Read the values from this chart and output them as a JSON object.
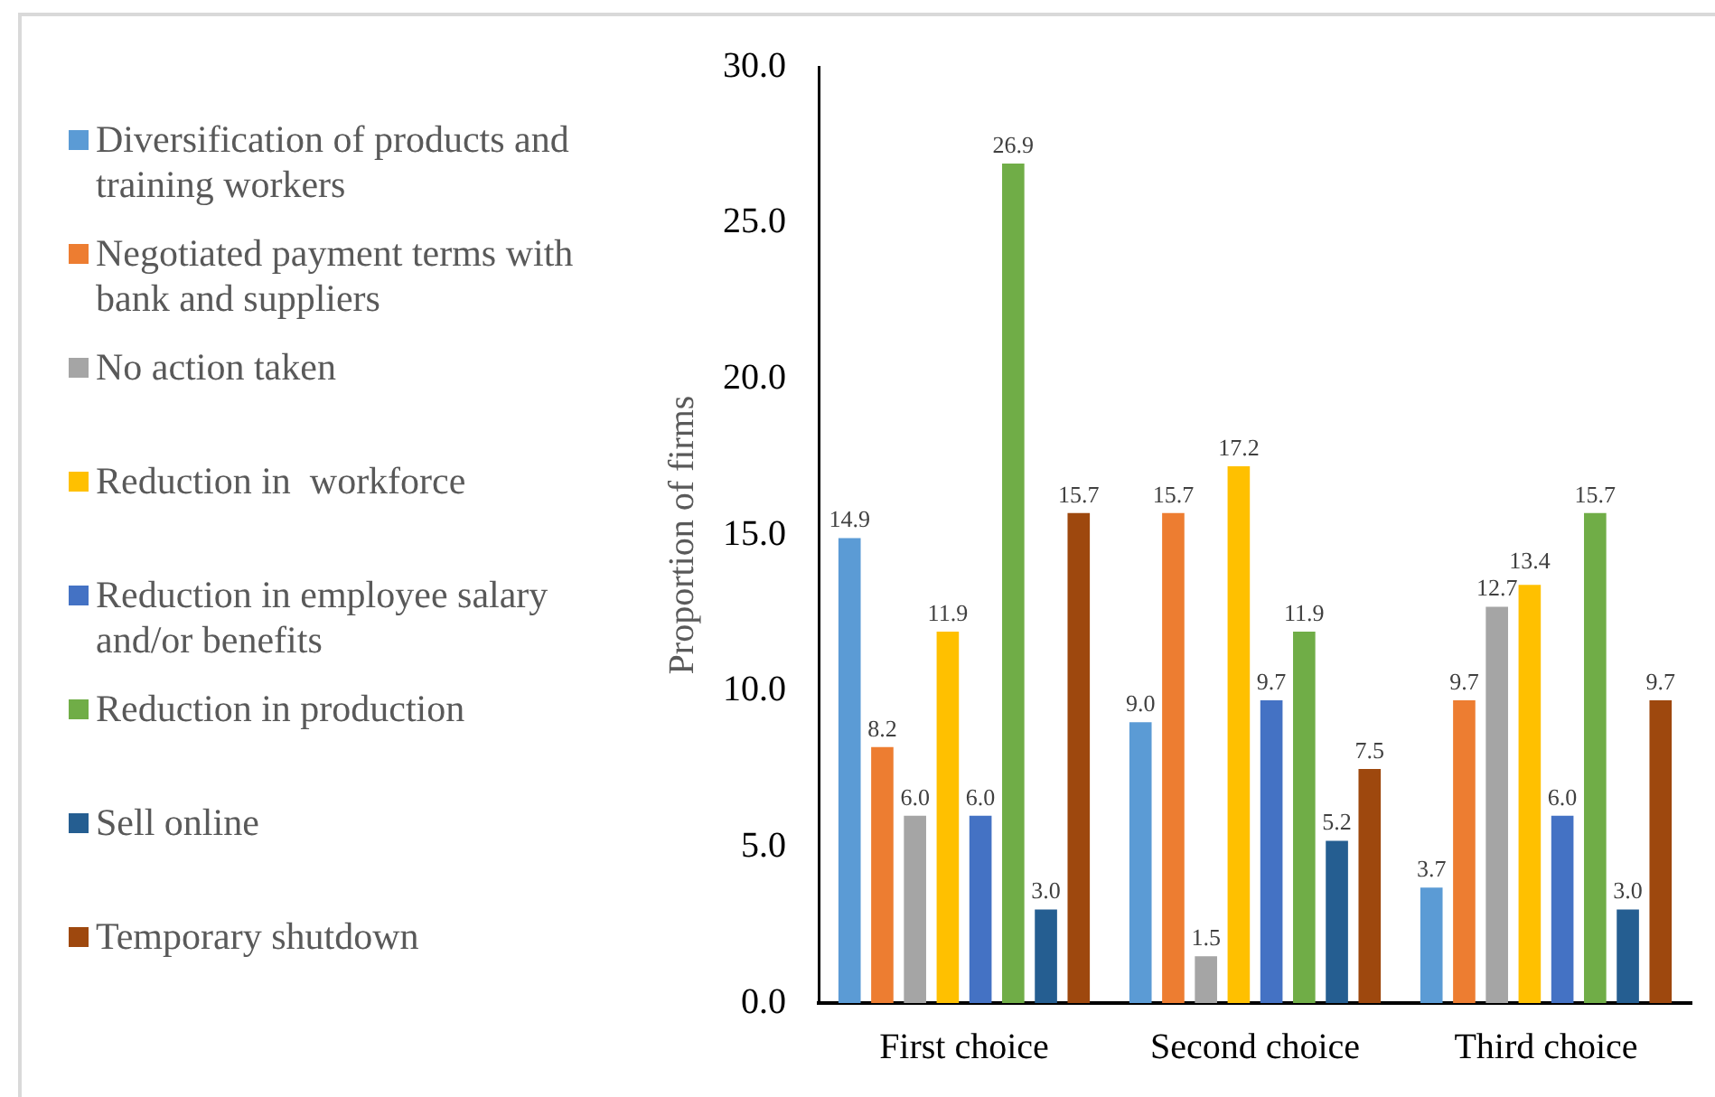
{
  "chart_data": {
    "type": "bar",
    "ylabel": "Proportion of firms",
    "categories": [
      "First choice",
      "Second choice",
      "Third choice"
    ],
    "series": [
      {
        "name": "Diversification of products and training workers",
        "color": "#5b9bd5",
        "values": [
          14.9,
          9.0,
          3.7
        ],
        "value_labels": [
          "14.9",
          "9.0",
          "3.7"
        ]
      },
      {
        "name": "Negotiated payment terms with bank and suppliers",
        "color": "#ed7d31",
        "values": [
          8.2,
          15.7,
          9.7
        ],
        "value_labels": [
          "8.2",
          "15.7",
          "9.7"
        ]
      },
      {
        "name": "No action taken",
        "color": "#a5a5a5",
        "values": [
          6.0,
          1.5,
          12.7
        ],
        "value_labels": [
          "6.0",
          "1.5",
          "12.7"
        ]
      },
      {
        "name": "Reduction in  workforce",
        "color": "#ffc000",
        "values": [
          11.9,
          17.2,
          13.4
        ],
        "value_labels": [
          "11.9",
          "17.2",
          "13.4"
        ]
      },
      {
        "name": "Reduction in employee salary and/or benefits",
        "color": "#4472c4",
        "values": [
          6.0,
          9.7,
          6.0
        ],
        "value_labels": [
          "6.0",
          "9.7",
          "6.0"
        ]
      },
      {
        "name": "Reduction in production",
        "color": "#70ad47",
        "values": [
          26.9,
          11.9,
          15.7
        ],
        "value_labels": [
          "26.9",
          "11.9",
          "15.7"
        ]
      },
      {
        "name": "Sell online",
        "color": "#255e91",
        "values": [
          3.0,
          5.2,
          3.0
        ],
        "value_labels": [
          "3.0",
          "5.2",
          "3.0"
        ]
      },
      {
        "name": "Temporary shutdown",
        "color": "#9e480e",
        "values": [
          15.7,
          7.5,
          9.7
        ],
        "value_labels": [
          "15.7",
          "7.5",
          "9.7"
        ]
      }
    ],
    "ylim": [
      0,
      30
    ],
    "yticks": [
      {
        "value": 0,
        "label": "0.0"
      },
      {
        "value": 5,
        "label": "5.0"
      },
      {
        "value": 10,
        "label": "10.0"
      },
      {
        "value": 15,
        "label": "15.0"
      },
      {
        "value": 20,
        "label": "20.0"
      },
      {
        "value": 25,
        "label": "25.0"
      },
      {
        "value": 30,
        "label": "30.0"
      }
    ],
    "grid": false,
    "legend": "left"
  }
}
